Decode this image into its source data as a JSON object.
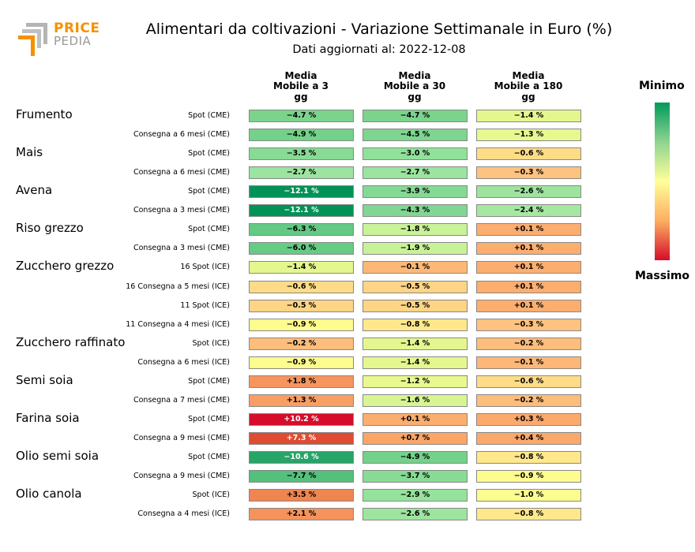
{
  "logo": {
    "word1": "PRICE",
    "word2": "PEDIA"
  },
  "header": {
    "title": "Alimentari da coltivazioni - Variazione Settimanale in Euro (%)",
    "subtitle": "Dati aggiornati al: 2022-12-08"
  },
  "columns": [
    {
      "line1": "Media",
      "line2": "Mobile a 3",
      "line3": "gg"
    },
    {
      "line1": "Media",
      "line2": "Mobile a 30",
      "line3": "gg"
    },
    {
      "line1": "Media",
      "line2": "Mobile a 180",
      "line3": "gg"
    }
  ],
  "legend": {
    "min_label": "Minimo",
    "max_label": "Massimo",
    "min_color": "#009a5a",
    "max_color": "#d50d2a"
  },
  "chart_data": {
    "type": "heatmap",
    "title": "Alimentari da coltivazioni - Variazione Settimanale in Euro (%)",
    "value_unit": "%",
    "commodities": [
      {
        "name": "Frumento",
        "rows": [
          {
            "label": "Spot (CME)",
            "values": [
              "−4.7 %",
              "−4.7 %",
              "−1.4 %"
            ],
            "colors": [
              "#7bd38c",
              "#7bd38c",
              "#e4f78e"
            ]
          },
          {
            "label": "Consegna a 6 mesi (CME)",
            "values": [
              "−4.9 %",
              "−4.5 %",
              "−1.3 %"
            ],
            "colors": [
              "#73d189",
              "#7dd58f",
              "#e6f88e"
            ]
          }
        ]
      },
      {
        "name": "Mais",
        "rows": [
          {
            "label": "Spot (CME)",
            "values": [
              "−3.5 %",
              "−3.0 %",
              "−0.6 %"
            ],
            "colors": [
              "#87db94",
              "#92e19b",
              "#fedc87"
            ]
          },
          {
            "label": "Consegna a 6 mesi (CME)",
            "values": [
              "−2.7 %",
              "−2.7 %",
              "−0.3 %"
            ],
            "colors": [
              "#9ce49f",
              "#9ce49f",
              "#fec380"
            ]
          }
        ]
      },
      {
        "name": "Avena",
        "rows": [
          {
            "label": "Spot (CME)",
            "values": [
              "−12.1 %",
              "−3.9 %",
              "−2.6 %"
            ],
            "colors": [
              "#009257",
              "#85d994",
              "#9ee49f"
            ]
          },
          {
            "label": "Consegna a 3 mesi (CME)",
            "values": [
              "−12.1 %",
              "−4.3 %",
              "−2.4 %"
            ],
            "colors": [
              "#009257",
              "#80d692",
              "#a5e8a1"
            ]
          }
        ]
      },
      {
        "name": "Riso grezzo",
        "rows": [
          {
            "label": "Spot (CME)",
            "values": [
              "−6.3 %",
              "−1.8 %",
              "+0.1 %"
            ],
            "colors": [
              "#63c984",
              "#c9f398",
              "#fcae6f"
            ]
          },
          {
            "label": "Consegna a 3 mesi (CME)",
            "values": [
              "−6.0 %",
              "−1.9 %",
              "+0.1 %"
            ],
            "colors": [
              "#66cb85",
              "#c8f297",
              "#fcae6f"
            ]
          }
        ]
      },
      {
        "name": "Zucchero grezzo",
        "rows": [
          {
            "label": "16 Spot (ICE)",
            "values": [
              "−1.4 %",
              "−0.1 %",
              "+0.1 %"
            ],
            "colors": [
              "#e4f78e",
              "#fdb877",
              "#fcae6f"
            ]
          },
          {
            "label": "16 Consegna a 5 mesi (ICE)",
            "values": [
              "−0.6 %",
              "−0.5 %",
              "+0.1 %"
            ],
            "colors": [
              "#fedc87",
              "#fed486",
              "#fcae6f"
            ]
          },
          {
            "label": "11 Spot (ICE)",
            "values": [
              "−0.5 %",
              "−0.5 %",
              "+0.1 %"
            ],
            "colors": [
              "#fed486",
              "#fed486",
              "#fcae6f"
            ]
          },
          {
            "label": "11 Consegna a 4 mesi (ICE)",
            "values": [
              "−0.9 %",
              "−0.8 %",
              "−0.3 %"
            ],
            "colors": [
              "#fefb8f",
              "#fee88b",
              "#fec380"
            ]
          }
        ]
      },
      {
        "name": "Zucchero raffinato",
        "rows": [
          {
            "label": "Spot (ICE)",
            "values": [
              "−0.2 %",
              "−1.4 %",
              "−0.2 %"
            ],
            "colors": [
              "#fdbd7b",
              "#e4f78e",
              "#fdbd7b"
            ]
          },
          {
            "label": "Consegna a 6 mesi (ICE)",
            "values": [
              "−0.9 %",
              "−1.4 %",
              "−0.1 %"
            ],
            "colors": [
              "#fefb8f",
              "#e4f78e",
              "#fdb877"
            ]
          }
        ]
      },
      {
        "name": "Semi soia",
        "rows": [
          {
            "label": "Spot (CME)",
            "values": [
              "+1.8 %",
              "−1.2 %",
              "−0.6 %"
            ],
            "colors": [
              "#f6955e",
              "#eaf98e",
              "#fedc87"
            ]
          },
          {
            "label": "Consegna a 7 mesi (CME)",
            "values": [
              "+1.3 %",
              "−1.6 %",
              "−0.2 %"
            ],
            "colors": [
              "#f89f63",
              "#d7f693",
              "#fdbd7b"
            ]
          }
        ]
      },
      {
        "name": "Farina soia",
        "rows": [
          {
            "label": "Spot (CME)",
            "values": [
              "+10.2 %",
              "+0.1 %",
              "+0.3 %"
            ],
            "colors": [
              "#d50d2a",
              "#fcae6f",
              "#fca96c"
            ]
          },
          {
            "label": "Consegna a 9 mesi (CME)",
            "values": [
              "+7.3 %",
              "+0.7 %",
              "+0.4 %"
            ],
            "colors": [
              "#df4c32",
              "#fba567",
              "#fba96a"
            ]
          }
        ]
      },
      {
        "name": "Olio semi soia",
        "rows": [
          {
            "label": "Spot (CME)",
            "values": [
              "−10.6 %",
              "−4.9 %",
              "−0.8 %"
            ],
            "colors": [
              "#27a468",
              "#73d189",
              "#fee88b"
            ]
          },
          {
            "label": "Consegna a 9 mesi (CME)",
            "values": [
              "−7.7 %",
              "−3.7 %",
              "−0.9 %"
            ],
            "colors": [
              "#53c07c",
              "#87db94",
              "#fefb8f"
            ]
          }
        ]
      },
      {
        "name": "Olio canola",
        "rows": [
          {
            "label": "Spot (ICE)",
            "values": [
              "+3.5 %",
              "−2.9 %",
              "−1.0 %"
            ],
            "colors": [
              "#ef8551",
              "#95e29c",
              "#fbfd8f"
            ]
          },
          {
            "label": "Consegna a 4 mesi (ICE)",
            "values": [
              "+2.1 %",
              "−2.6 %",
              "−0.8 %"
            ],
            "colors": [
              "#f5935d",
              "#9ee49f",
              "#fee88b"
            ]
          }
        ]
      }
    ]
  }
}
